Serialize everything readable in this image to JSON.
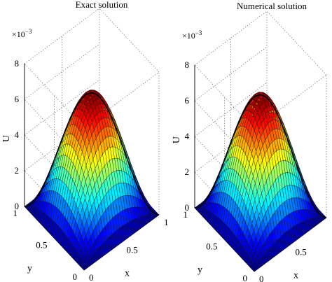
{
  "chart_data": [
    {
      "type": "surface",
      "title": "Exact solution",
      "xlabel": "x",
      "ylabel": "y",
      "zlabel": "U",
      "z_multiplier": "×10",
      "z_exponent": "−3",
      "xlim": [
        0,
        1
      ],
      "ylim": [
        0,
        1
      ],
      "zlim": [
        0,
        8
      ],
      "x_ticks": [
        "0",
        "0.5",
        "1"
      ],
      "y_ticks": [
        "0",
        "0.5",
        "1"
      ],
      "z_ticks": [
        "0",
        "2",
        "4",
        "6",
        "8"
      ],
      "surface_peak": 6.6,
      "surface_peak_at": [
        0.5,
        0.5
      ],
      "surface_shape": "sin(pi*x)*sin(pi*y)",
      "grid": true,
      "colormap": "jet"
    },
    {
      "type": "surface",
      "title": "Numerical solution",
      "xlabel": "x",
      "ylabel": "y",
      "zlabel": "U",
      "z_multiplier": "×10",
      "z_exponent": "−3",
      "xlim": [
        0,
        1
      ],
      "ylim": [
        0,
        1
      ],
      "zlim": [
        0,
        8
      ],
      "x_ticks": [
        "0",
        "0.5",
        "1"
      ],
      "y_ticks": [
        "0",
        "0.5",
        "1"
      ],
      "z_ticks": [
        "0",
        "2",
        "4",
        "6",
        "8"
      ],
      "surface_peak": 6.6,
      "surface_peak_at": [
        0.5,
        0.5
      ],
      "surface_shape": "sin(pi*x)*sin(pi*y)",
      "grid": true,
      "colormap": "jet"
    }
  ]
}
